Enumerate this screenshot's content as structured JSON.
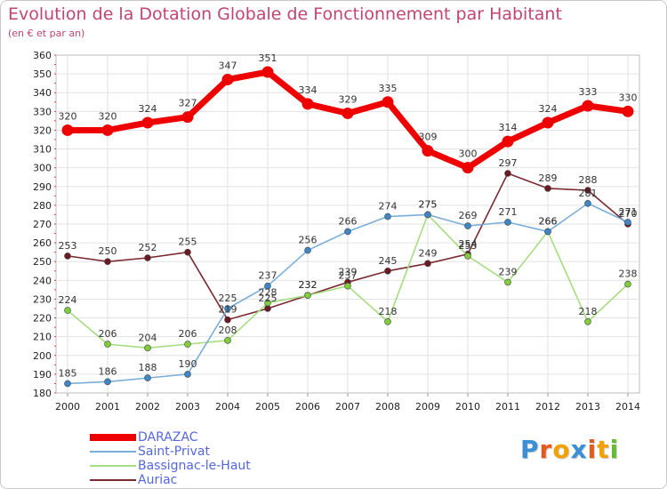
{
  "chart_data": {
    "type": "line",
    "title": "Evolution de la Dotation Globale de Fonctionnement par Habitant",
    "subtitle": "(en € et par an)",
    "xlabel": "",
    "ylabel": "",
    "categories": [
      "2000",
      "2001",
      "2002",
      "2003",
      "2004",
      "2005",
      "2006",
      "2007",
      "2008",
      "2009",
      "2010",
      "2011",
      "2012",
      "2013",
      "2014"
    ],
    "ylim": [
      180,
      360
    ],
    "yticks": [
      180,
      190,
      200,
      210,
      220,
      230,
      240,
      250,
      260,
      270,
      280,
      290,
      300,
      310,
      320,
      330,
      340,
      350,
      360
    ],
    "grid": true,
    "legend_position": "bottom-left",
    "series": [
      {
        "name": "DARAZAC",
        "color": "#ee0000",
        "marker": "#ee0000",
        "values": [
          320,
          320,
          324,
          327,
          347,
          351,
          334,
          329,
          335,
          309,
          300,
          314,
          324,
          333,
          330
        ],
        "labels": [
          "320",
          "320",
          "324",
          "327",
          "347",
          "351",
          "334",
          "329",
          "335",
          "309",
          "300",
          "314",
          "324",
          "333",
          "330"
        ]
      },
      {
        "name": "Saint-Privat",
        "color": "#7aaed8",
        "marker": "#3f86c6",
        "values": [
          185,
          186,
          188,
          190,
          225,
          237,
          256,
          266,
          274,
          275,
          269,
          271,
          266,
          281,
          271
        ],
        "labels": [
          "185",
          "186",
          "188",
          "190",
          "225",
          "237",
          "256",
          "266",
          "274",
          "275",
          "269",
          "271",
          "266",
          "281",
          "271"
        ]
      },
      {
        "name": "Bassignac-le-Haut",
        "color": "#a6dd80",
        "marker": "#7fcd3c",
        "values": [
          224,
          206,
          204,
          206,
          208,
          228,
          232,
          237,
          218,
          275,
          253,
          239,
          266,
          218,
          238
        ],
        "labels": [
          "224",
          "206",
          "204",
          "206",
          "208",
          "228",
          "232",
          "237",
          "218",
          "275",
          "253",
          "239",
          "266",
          "218",
          "238"
        ]
      },
      {
        "name": "Auriac",
        "color": "#7a2a30",
        "marker": "#6a1a22",
        "values": [
          253,
          250,
          252,
          255,
          219,
          225,
          232,
          239,
          245,
          249,
          254,
          297,
          289,
          288,
          270
        ],
        "labels": [
          "253",
          "250",
          "252",
          "255",
          "219",
          "225",
          "232",
          "239",
          "245",
          "249",
          "254",
          "297",
          "289",
          "288",
          "270"
        ]
      }
    ]
  },
  "legend": {
    "items": [
      {
        "label": "DARAZAC",
        "color": "#ee0000"
      },
      {
        "label": "Saint-Privat",
        "color": "#7aaed8"
      },
      {
        "label": "Bassignac-le-Haut",
        "color": "#a6dd80"
      },
      {
        "label": "Auriac",
        "color": "#7a2a30"
      }
    ]
  },
  "logo": {
    "letters": [
      "P",
      "r",
      "o",
      "x",
      "i",
      "t",
      "i"
    ],
    "colors": [
      "#3a8fd6",
      "#e85a1c",
      "#f4a000",
      "#3a8fd6",
      "#e85a1c",
      "#f4a000",
      "#66bb33"
    ]
  }
}
